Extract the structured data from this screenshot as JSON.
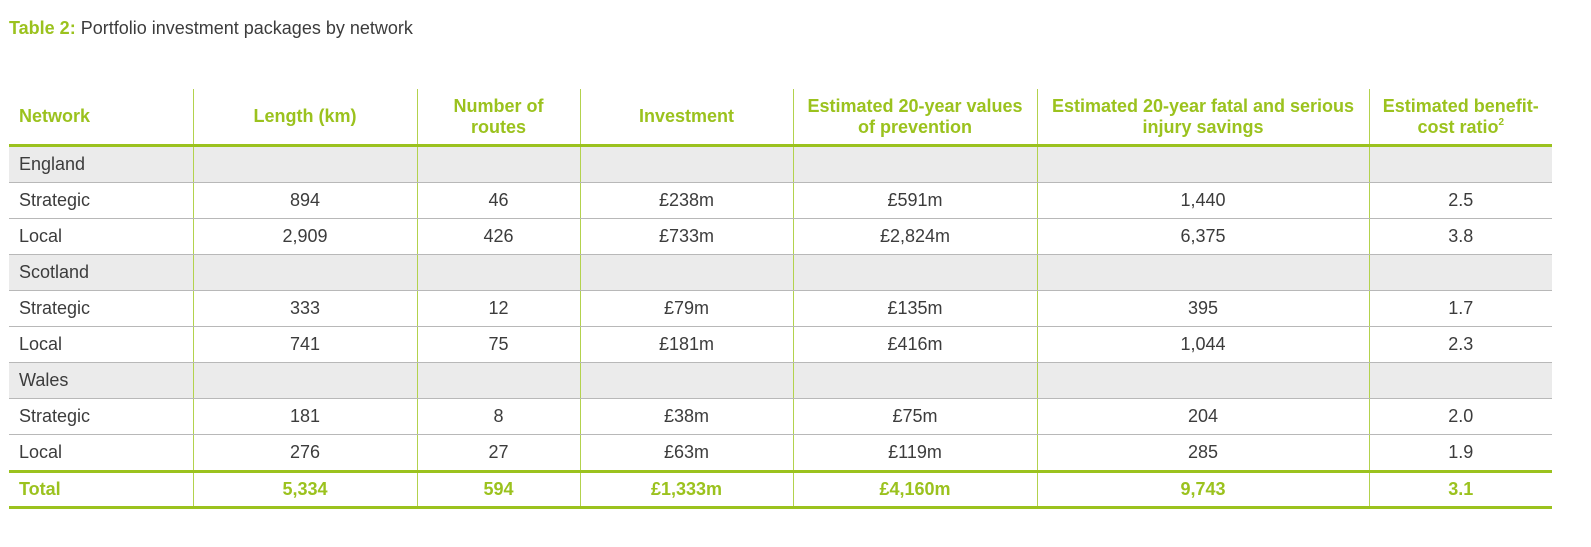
{
  "caption": {
    "label": "Table 2:",
    "text": "Portfolio investment packages by network"
  },
  "columns": [
    "Network",
    "Length (km)",
    "Number of routes",
    "Investment",
    "Estimated 20-year values of prevention",
    "Estimated 20-year fatal and serious injury savings",
    "Estimated benefit-cost ratio"
  ],
  "columns_footnote": "2",
  "rows": [
    {
      "type": "region",
      "cells": [
        "England",
        "",
        "",
        "",
        "",
        "",
        ""
      ]
    },
    {
      "type": "data",
      "cells": [
        "Strategic",
        "894",
        "46",
        "£238m",
        "£591m",
        "1,440",
        "2.5"
      ]
    },
    {
      "type": "data",
      "cells": [
        "Local",
        "2,909",
        "426",
        "£733m",
        "£2,824m",
        "6,375",
        "3.8"
      ]
    },
    {
      "type": "region",
      "cells": [
        "Scotland",
        "",
        "",
        "",
        "",
        "",
        ""
      ]
    },
    {
      "type": "data",
      "cells": [
        "Strategic",
        "333",
        "12",
        "£79m",
        "£135m",
        "395",
        "1.7"
      ]
    },
    {
      "type": "data",
      "cells": [
        "Local",
        "741",
        "75",
        "£181m",
        "£416m",
        "1,044",
        "2.3"
      ]
    },
    {
      "type": "region",
      "cells": [
        "Wales",
        "",
        "",
        "",
        "",
        "",
        ""
      ]
    },
    {
      "type": "data",
      "cells": [
        "Strategic",
        "181",
        "8",
        "£38m",
        "£75m",
        "204",
        "2.0"
      ]
    },
    {
      "type": "data",
      "cells": [
        "Local",
        "276",
        "27",
        "£63m",
        "£119m",
        "285",
        "1.9"
      ]
    }
  ],
  "total": [
    "Total",
    "5,334",
    "594",
    "£1,333m",
    "£4,160m",
    "9,743",
    "3.1"
  ],
  "colors": {
    "accent": "#9bc21e",
    "text": "#3c3c3c",
    "region_bg": "#ebebeb",
    "row_line": "#b8b8b8"
  }
}
